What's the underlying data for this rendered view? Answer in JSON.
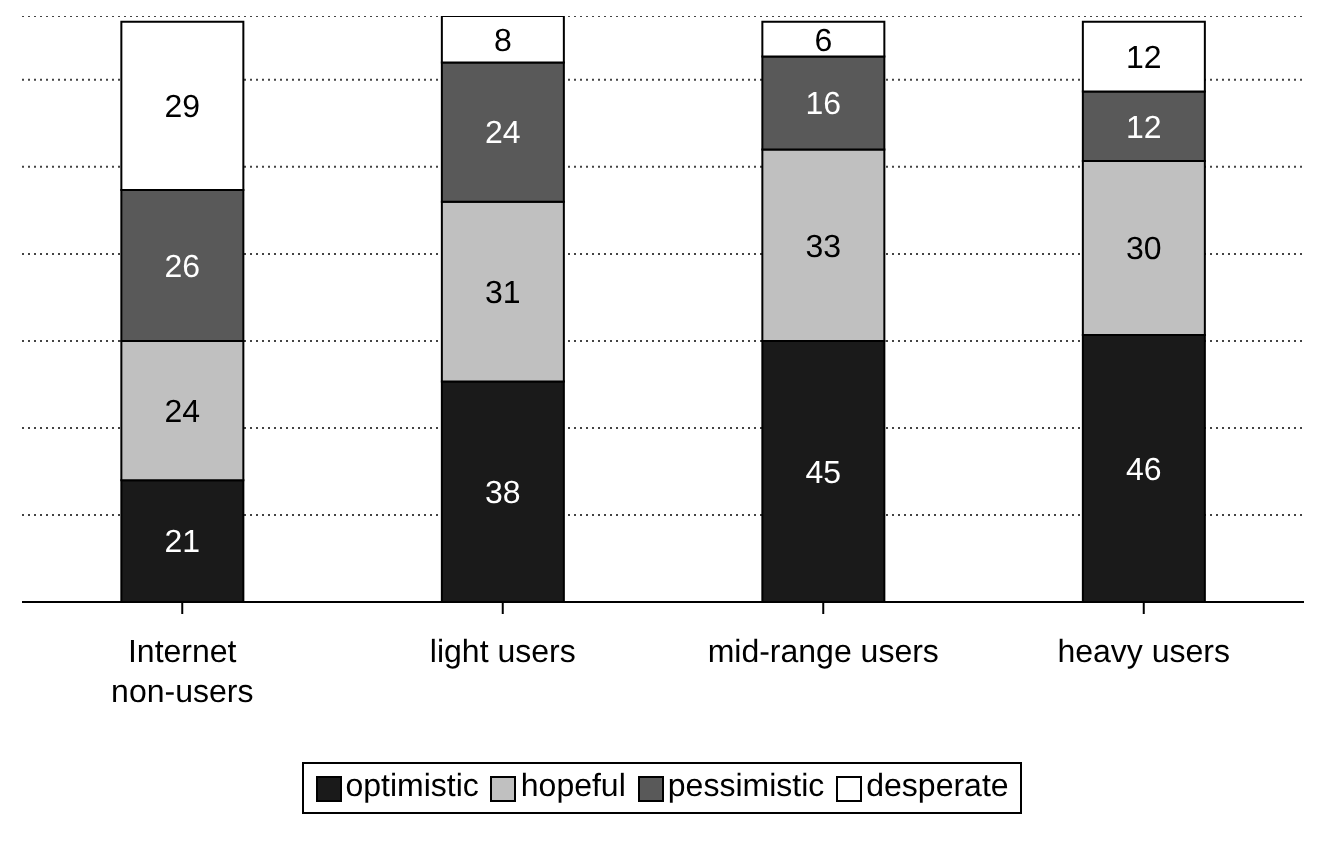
{
  "chart_data": {
    "type": "bar",
    "stacked": true,
    "categories": [
      "Internet non-users",
      "light users",
      "mid-range users",
      "heavy users"
    ],
    "series": [
      {
        "name": "optimistic",
        "color": "#1a1a1a",
        "values": [
          21,
          38,
          45,
          46
        ]
      },
      {
        "name": "hopeful",
        "color": "#c0c0c0",
        "values": [
          24,
          31,
          33,
          30
        ]
      },
      {
        "name": "pessimistic",
        "color": "#595959",
        "values": [
          26,
          24,
          16,
          12
        ]
      },
      {
        "name": "desperate",
        "color": "#ffffff",
        "values": [
          29,
          8,
          6,
          12
        ]
      }
    ],
    "tick_labels": "x",
    "grid": "y",
    "legend": "bottom",
    "data_labels": true
  }
}
